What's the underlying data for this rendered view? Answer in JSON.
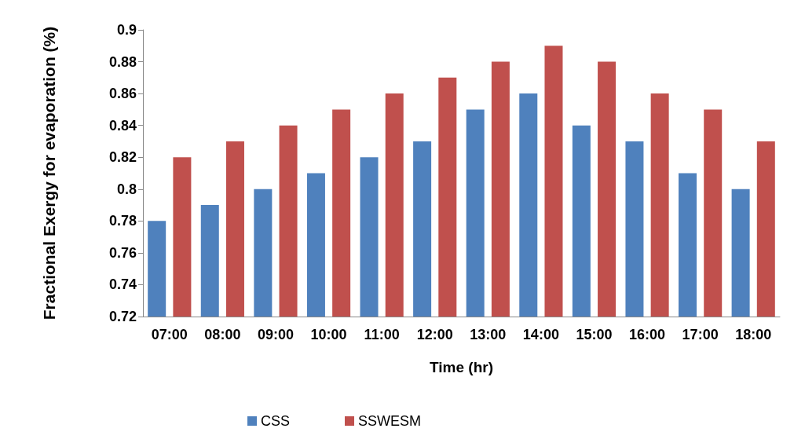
{
  "chart_data": {
    "type": "bar",
    "xlabel": "Time (hr)",
    "ylabel": "Fractional Exergy for evaporation (%)",
    "categories": [
      "07:00",
      "08:00",
      "09:00",
      "10:00",
      "11:00",
      "12:00",
      "13:00",
      "14:00",
      "15:00",
      "16:00",
      "17:00",
      "18:00"
    ],
    "series": [
      {
        "name": "CSS",
        "color": "#4f81bd",
        "values": [
          0.78,
          0.79,
          0.8,
          0.81,
          0.82,
          0.83,
          0.85,
          0.86,
          0.84,
          0.83,
          0.81,
          0.8
        ]
      },
      {
        "name": "SSWESM",
        "color": "#c0504d",
        "values": [
          0.82,
          0.83,
          0.84,
          0.85,
          0.86,
          0.87,
          0.88,
          0.89,
          0.88,
          0.86,
          0.85,
          0.83
        ]
      }
    ],
    "ylim": [
      0.72,
      0.9
    ],
    "yticks": [
      0.72,
      0.74,
      0.76,
      0.78,
      0.8,
      0.82,
      0.84,
      0.86,
      0.88,
      0.9
    ],
    "grid": false,
    "legend": "bottom"
  }
}
